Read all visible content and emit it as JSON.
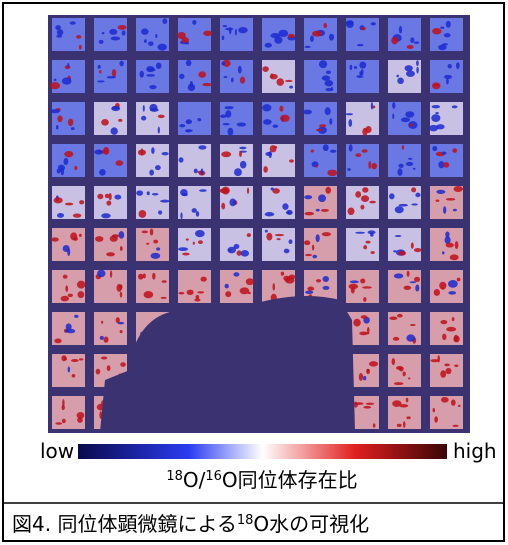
{
  "figure": {
    "colorbar": {
      "low_label": "low",
      "high_label": "high"
    },
    "axis_label": {
      "parts": [
        "18",
        "O/",
        "16",
        "O同位体存在比"
      ]
    },
    "caption": {
      "parts": [
        "図4. 同位体顕微鏡による",
        "18",
        "O水の可視化"
      ]
    }
  }
}
